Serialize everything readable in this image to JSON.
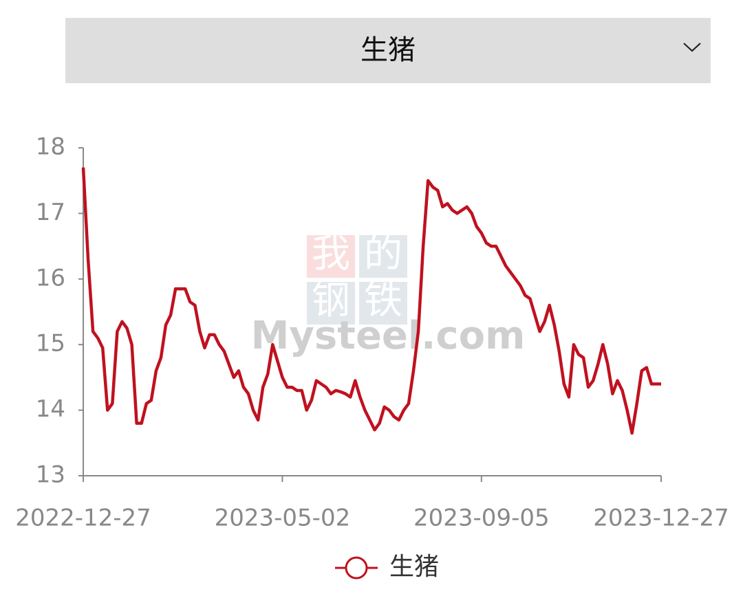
{
  "dropdown": {
    "label": "生猪"
  },
  "watermark": {
    "chars": [
      "我",
      "的",
      "钢",
      "铁"
    ],
    "text": "Mysteel.com"
  },
  "chart_data": {
    "type": "line",
    "categories": [
      "2022-12-27",
      null,
      null,
      null,
      null,
      null,
      null,
      null,
      null,
      null,
      null,
      null,
      null,
      null,
      null,
      null,
      null,
      null,
      null,
      null,
      null,
      null,
      null,
      null,
      null,
      null,
      null,
      null,
      null,
      null,
      null,
      null,
      null,
      null,
      null,
      null,
      null,
      null,
      null,
      null,
      null,
      "2023-05-02",
      null,
      null,
      null,
      null,
      null,
      null,
      null,
      null,
      null,
      null,
      null,
      null,
      null,
      null,
      null,
      null,
      null,
      null,
      null,
      null,
      null,
      null,
      null,
      null,
      null,
      null,
      null,
      null,
      null,
      null,
      null,
      null,
      null,
      null,
      null,
      null,
      null,
      null,
      null,
      null,
      "2023-09-05",
      null,
      null,
      null,
      null,
      null,
      null,
      null,
      null,
      null,
      null,
      null,
      null,
      null,
      null,
      null,
      null,
      null,
      null,
      null,
      null,
      null,
      null,
      null,
      null,
      null,
      null,
      null,
      null,
      null,
      null,
      null,
      null,
      null,
      null,
      null,
      null,
      "2023-12-27"
    ],
    "series": [
      {
        "name": "生猪",
        "color": "#c0111f",
        "values": [
          17.7,
          16.3,
          15.2,
          15.1,
          14.95,
          14.0,
          14.1,
          15.2,
          15.35,
          15.25,
          15.0,
          13.8,
          13.8,
          14.1,
          14.15,
          14.6,
          14.8,
          15.3,
          15.45,
          15.85,
          15.85,
          15.85,
          15.65,
          15.6,
          15.2,
          14.95,
          15.15,
          15.15,
          15.0,
          14.9,
          14.7,
          14.5,
          14.6,
          14.35,
          14.25,
          14.0,
          13.85,
          14.35,
          14.55,
          15.0,
          14.75,
          14.5,
          14.35,
          14.35,
          14.3,
          14.3,
          14.0,
          14.15,
          14.45,
          14.4,
          14.35,
          14.25,
          14.3,
          14.28,
          14.25,
          14.2,
          14.45,
          14.2,
          14.0,
          13.85,
          13.7,
          13.8,
          14.05,
          14.0,
          13.9,
          13.85,
          14.0,
          14.1,
          14.6,
          15.2,
          16.5,
          17.5,
          17.4,
          17.35,
          17.1,
          17.15,
          17.05,
          17.0,
          17.05,
          17.1,
          17.0,
          16.8,
          16.7,
          16.55,
          16.5,
          16.5,
          16.35,
          16.2,
          16.1,
          16.0,
          15.9,
          15.75,
          15.7,
          15.45,
          15.2,
          15.35,
          15.6,
          15.3,
          14.9,
          14.4,
          14.2,
          15.0,
          14.85,
          14.8,
          14.35,
          14.45,
          14.7,
          15.0,
          14.7,
          14.25,
          14.45,
          14.3,
          14.0,
          13.65,
          14.1,
          14.6,
          14.65,
          14.4,
          14.4,
          14.4
        ]
      }
    ],
    "ylim": [
      13,
      18
    ],
    "yticks": [
      13,
      14,
      15,
      16,
      17,
      18
    ],
    "grid": false,
    "legend": "bottom"
  }
}
